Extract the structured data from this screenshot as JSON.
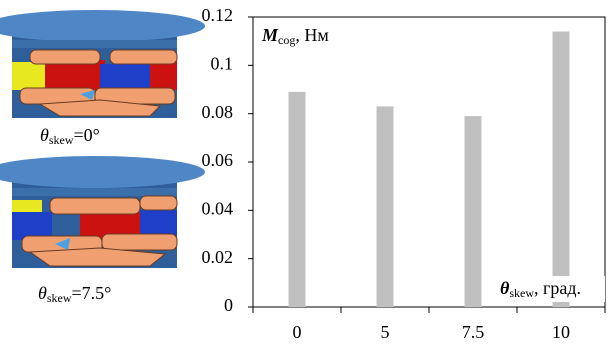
{
  "chart_data": {
    "type": "bar",
    "y_label": {
      "symbol": "M",
      "subscript": "cog",
      "unit": ", Нм"
    },
    "x_label": {
      "symbol": "θ",
      "subscript": "skew",
      "unit": ", град."
    },
    "categories": [
      "0",
      "5",
      "7.5",
      "10"
    ],
    "values": [
      0.089,
      0.083,
      0.079,
      0.114
    ],
    "color": "#c0c0c0",
    "ylim": [
      0,
      0.12
    ],
    "yticks": [
      0,
      0.02,
      0.04,
      0.06,
      0.08,
      0.1,
      0.12
    ]
  },
  "images": [
    {
      "caption": {
        "symbol": "θ",
        "subscript": "skew",
        "text": "=0°"
      }
    },
    {
      "caption": {
        "symbol": "θ",
        "subscript": "skew",
        "text": "=7.5°"
      }
    }
  ]
}
